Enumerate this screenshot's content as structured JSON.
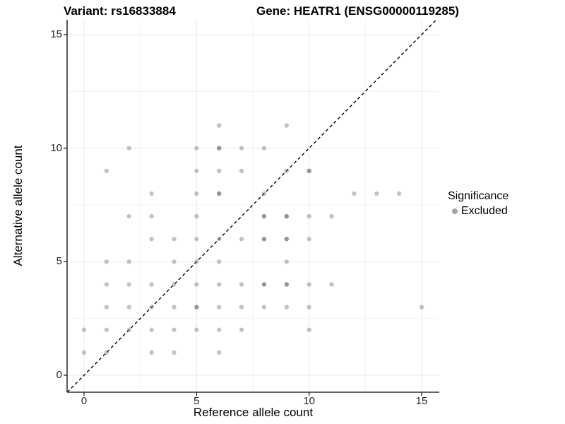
{
  "chart_data": {
    "type": "scatter",
    "title_left": "Variant: rs16833884",
    "title_right": "Gene: HEATR1 (ENSG00000119285)",
    "xlabel": "Reference allele count",
    "ylabel": "Alternative allele count",
    "x_ticks": [
      0,
      5,
      10,
      15
    ],
    "y_ticks": [
      0,
      5,
      10,
      15
    ],
    "x_minor_gridlines": [
      2.5,
      7.5,
      12.5
    ],
    "y_minor_gridlines": [
      2.5,
      7.5,
      12.5
    ],
    "xlim": [
      -0.75,
      15.75
    ],
    "ylim": [
      -0.75,
      15.75
    ],
    "grid": true,
    "legend": {
      "title": "Significance",
      "position": "right",
      "items": [
        {
          "label": "Excluded",
          "color": "#a3a3a3"
        }
      ]
    },
    "identity_line": {
      "equation": "y = x",
      "style": "dashed",
      "color": "#000000"
    },
    "point_color": "#7a7a7a",
    "grid_major_color": "#e9e9e9",
    "grid_minor_color": "#f2f2f2",
    "axis_line_color": "#333333",
    "points": [
      [
        6,
        11
      ],
      [
        9,
        11
      ],
      [
        2,
        10
      ],
      [
        5,
        10
      ],
      [
        6,
        10
      ],
      [
        7,
        10
      ],
      [
        8,
        10
      ],
      [
        1,
        9
      ],
      [
        5,
        9
      ],
      [
        6,
        9
      ],
      [
        7,
        9
      ],
      [
        9,
        9
      ],
      [
        10,
        9
      ],
      [
        3,
        8
      ],
      [
        5,
        8
      ],
      [
        6,
        8
      ],
      [
        8,
        8
      ],
      [
        12,
        8
      ],
      [
        13,
        8
      ],
      [
        14,
        8
      ],
      [
        2,
        7
      ],
      [
        3,
        7
      ],
      [
        5,
        7
      ],
      [
        8,
        7
      ],
      [
        9,
        7
      ],
      [
        10,
        7
      ],
      [
        11,
        7
      ],
      [
        3,
        6
      ],
      [
        4,
        6
      ],
      [
        5,
        6
      ],
      [
        6,
        6
      ],
      [
        7,
        6
      ],
      [
        8,
        6
      ],
      [
        9,
        6
      ],
      [
        10,
        6
      ],
      [
        1,
        5
      ],
      [
        2,
        5
      ],
      [
        4,
        5
      ],
      [
        5,
        5
      ],
      [
        6,
        5
      ],
      [
        9,
        5
      ],
      [
        1,
        4
      ],
      [
        2,
        4
      ],
      [
        3,
        4
      ],
      [
        4,
        4
      ],
      [
        5,
        4
      ],
      [
        6,
        4
      ],
      [
        7,
        4
      ],
      [
        8,
        4
      ],
      [
        9,
        4
      ],
      [
        10,
        4
      ],
      [
        11,
        4
      ],
      [
        1,
        3
      ],
      [
        2,
        3
      ],
      [
        3,
        3
      ],
      [
        4,
        3
      ],
      [
        5,
        3
      ],
      [
        6,
        3
      ],
      [
        7,
        3
      ],
      [
        8,
        3
      ],
      [
        9,
        3
      ],
      [
        10,
        3
      ],
      [
        15,
        3
      ],
      [
        0,
        2
      ],
      [
        1,
        2
      ],
      [
        2,
        2
      ],
      [
        3,
        2
      ],
      [
        4,
        2
      ],
      [
        5,
        2
      ],
      [
        6,
        2
      ],
      [
        7,
        2
      ],
      [
        10,
        2
      ],
      [
        0,
        1
      ],
      [
        1,
        1
      ],
      [
        3,
        1
      ],
      [
        4,
        1
      ],
      [
        6,
        1
      ]
    ],
    "overplotted_points": [
      [
        6,
        10
      ],
      [
        6,
        8
      ],
      [
        8,
        7
      ],
      [
        9,
        7
      ],
      [
        10,
        9
      ],
      [
        8,
        6
      ],
      [
        9,
        6
      ],
      [
        8,
        4
      ],
      [
        9,
        4
      ],
      [
        5,
        3
      ]
    ]
  }
}
